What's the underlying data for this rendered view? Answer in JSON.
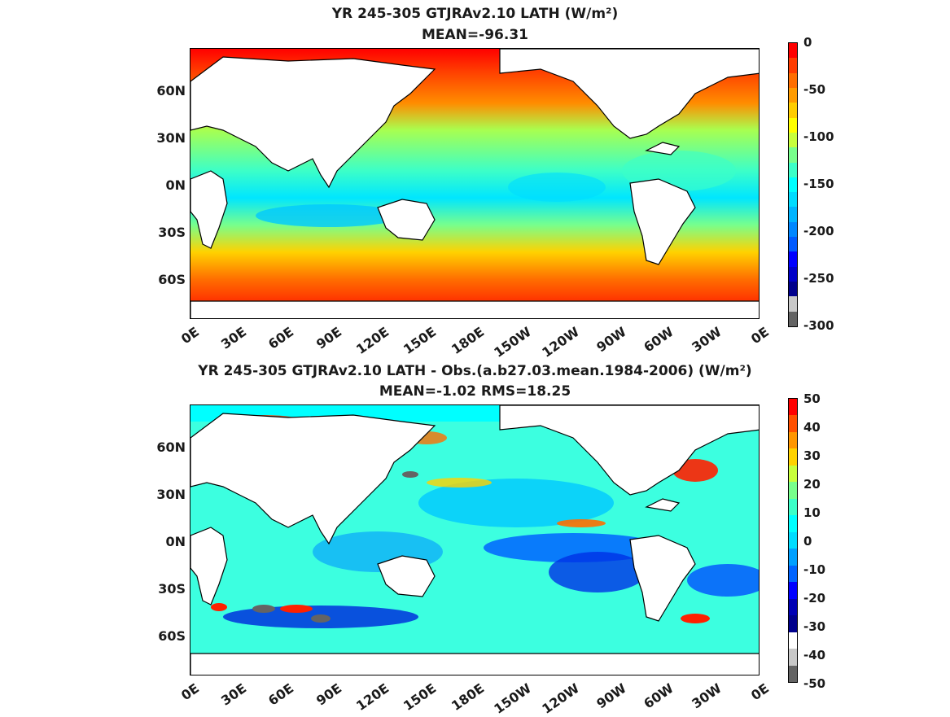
{
  "panels": [
    {
      "title_line1": "YR 245-305 GTJRAv2.10  LATH (W/m²)",
      "title_line2": "MEAN=-96.31",
      "colorbar_labels": [
        "0",
        "-50",
        "-100",
        "-150",
        "-200",
        "-250",
        "-300"
      ],
      "colorbar_colors": [
        "#ff0000",
        "#ff3c00",
        "#ff6e00",
        "#ff9b00",
        "#ffcd00",
        "#ffff00",
        "#c8ff3c",
        "#78ff8c",
        "#3cffc8",
        "#00ffff",
        "#00dcff",
        "#00b4ff",
        "#0087ff",
        "#005aff",
        "#0000ff",
        "#0000c8",
        "#00008c",
        "#c8c8c8",
        "#646464"
      ]
    },
    {
      "title_line1": "YR 245-305 GTJRAv2.10 LATH - Obs.(a.b27.03.mean.1984-2006) (W/m²)",
      "title_line2": "MEAN=-1.02 RMS=18.25",
      "colorbar_labels": [
        "50",
        "40",
        "30",
        "20",
        "10",
        "0",
        "-10",
        "-20",
        "-30",
        "-40",
        "-50"
      ],
      "colorbar_colors": [
        "#ff0000",
        "#ff5000",
        "#ff9600",
        "#ffd200",
        "#c8ff3c",
        "#78ff8c",
        "#3cffc8",
        "#00ffff",
        "#00dcff",
        "#00a0ff",
        "#0064ff",
        "#0000ff",
        "#0000b4",
        "#00008c",
        "#ffffff",
        "#c8c8c8",
        "#646464"
      ]
    }
  ],
  "axes": {
    "y_labels": [
      "60N",
      "30N",
      "0N",
      "30S",
      "60S"
    ],
    "x_labels": [
      "0E",
      "30E",
      "60E",
      "90E",
      "120E",
      "150E",
      "180E",
      "150W",
      "120W",
      "90W",
      "60W",
      "30W",
      "0E"
    ]
  }
}
